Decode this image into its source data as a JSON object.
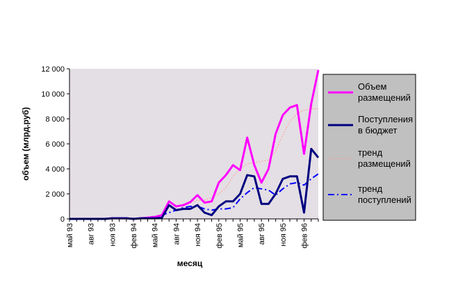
{
  "chart_data": {
    "type": "line",
    "title": "",
    "xlabel": "месяц",
    "ylabel": "объем (млрд.руб)",
    "ylim": [
      0,
      12000
    ],
    "y_ticks": [
      "0",
      "2 000",
      "4 000",
      "6 000",
      "8 000",
      "10 000",
      "12 000"
    ],
    "x_tick_labels": [
      "май 93",
      "авг 93",
      "ноя 93",
      "фев 94",
      "май 94",
      "авг 94",
      "ноя 94",
      "фев 95",
      "май 95",
      "авг 95",
      "ноя 95",
      "фев 96"
    ],
    "x_tick_every": 3,
    "legend_position": "right",
    "grid": false,
    "colors": {
      "plot_background": "#e4dfe4",
      "legend_background": "#c0c0c0",
      "placements": "#ff00ff",
      "receipts": "#000080",
      "trend_placements": "#ff9999",
      "trend_receipts": "#0000ff"
    },
    "series": [
      {
        "name": "Объем размещений",
        "style": "solid-thick",
        "values": [
          0,
          0,
          0,
          0,
          0,
          0,
          50,
          50,
          50,
          0,
          50,
          100,
          150,
          300,
          1400,
          1000,
          1100,
          1350,
          1900,
          1300,
          1400,
          2900,
          3500,
          4300,
          3900,
          6500,
          4300,
          2900,
          4000,
          6800,
          8300,
          8900,
          9100,
          5200,
          9200,
          11900
        ]
      },
      {
        "name": "Поступления в бюджет",
        "style": "solid-thick",
        "values": [
          0,
          0,
          0,
          0,
          0,
          0,
          50,
          50,
          50,
          0,
          50,
          50,
          50,
          100,
          1100,
          700,
          800,
          800,
          1100,
          500,
          300,
          1000,
          1400,
          1400,
          2000,
          3500,
          3400,
          1200,
          1200,
          2000,
          3200,
          3400,
          3400,
          500,
          5600,
          4900
        ]
      },
      {
        "name": "тренд размещений",
        "style": "dotted",
        "values": [
          null,
          null,
          null,
          null,
          null,
          null,
          null,
          null,
          null,
          null,
          null,
          null,
          null,
          null,
          null,
          null,
          1000,
          1300,
          1500,
          1500,
          1700,
          2000,
          2500,
          3400,
          4000,
          4400,
          4500,
          4600,
          4700,
          5400,
          6700,
          7800,
          8400,
          8700,
          8800,
          8800
        ]
      },
      {
        "name": "тренд поступлений",
        "style": "dash-dot",
        "values": [
          null,
          null,
          null,
          null,
          null,
          null,
          null,
          null,
          null,
          null,
          null,
          100,
          200,
          300,
          500,
          700,
          900,
          1000,
          1000,
          800,
          700,
          800,
          800,
          900,
          1600,
          2100,
          2500,
          2400,
          2300,
          1900,
          2400,
          2800,
          2900,
          2700,
          3200,
          3600
        ]
      }
    ]
  }
}
